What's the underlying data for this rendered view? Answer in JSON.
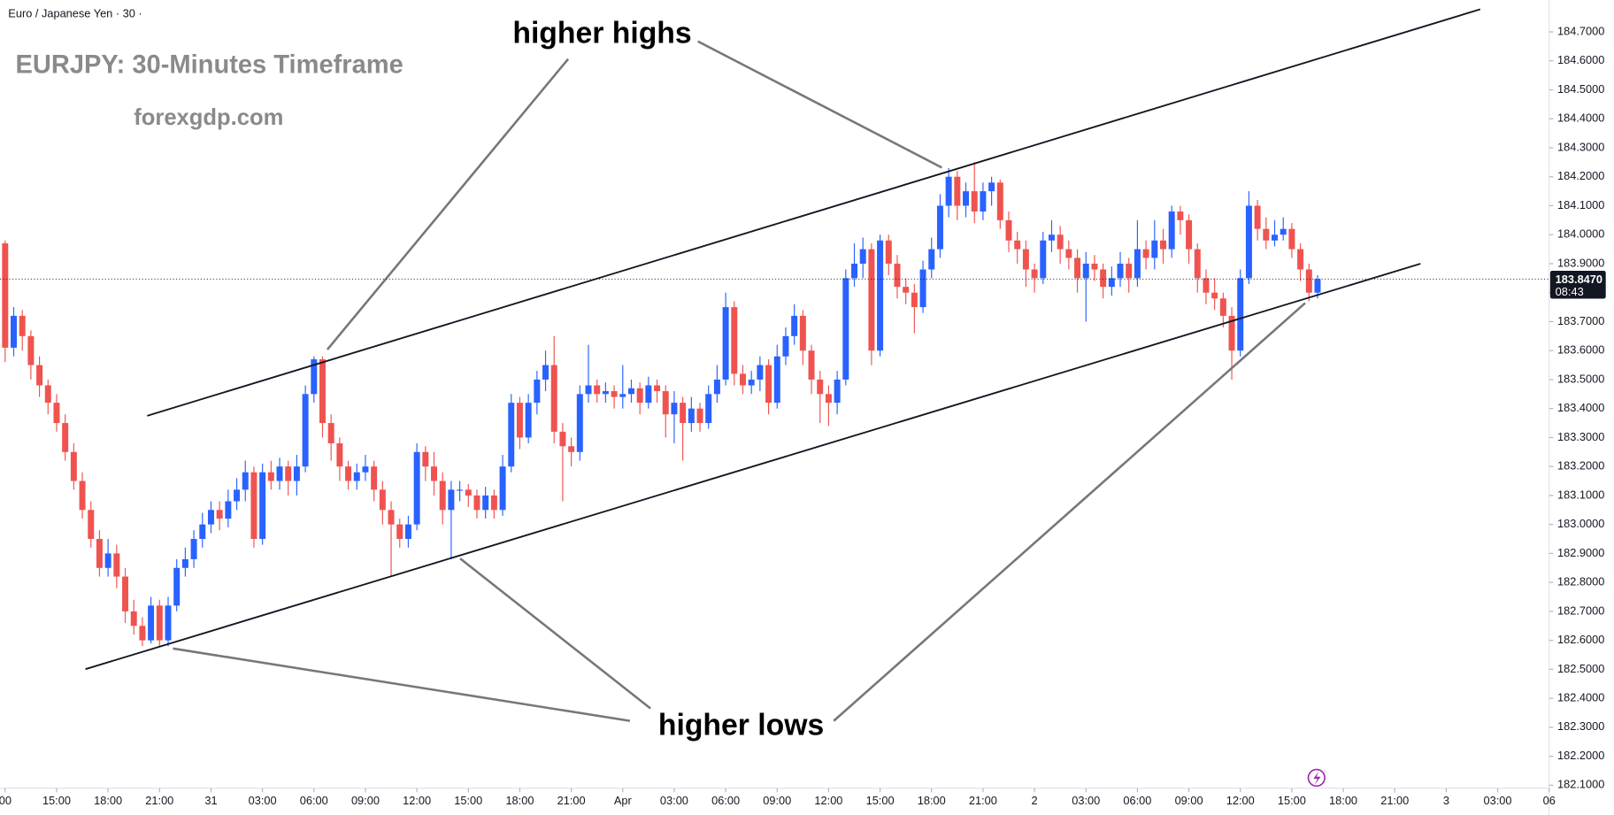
{
  "chart_data": {
    "type": "candlestick",
    "header": "Euro / Japanese Yen · 30 ·",
    "title": "EURJPY: 30-Minutes Timeframe",
    "source": "forexgdp.com",
    "annotations": [
      "higher highs",
      "higher lows"
    ],
    "up_color": "#2962ff",
    "down_color": "#ef5350",
    "grid": false,
    "ylim": [
      182.09,
      184.81
    ],
    "yticks": [
      {
        "value": 182.1,
        "label": "182.1000"
      },
      {
        "value": 182.2,
        "label": "182.2000"
      },
      {
        "value": 182.3,
        "label": "182.3000"
      },
      {
        "value": 182.4,
        "label": "182.4000"
      },
      {
        "value": 182.5,
        "label": "182.5000"
      },
      {
        "value": 182.6,
        "label": "182.6000"
      },
      {
        "value": 182.7,
        "label": "182.7000"
      },
      {
        "value": 182.8,
        "label": "182.8000"
      },
      {
        "value": 182.9,
        "label": "182.9000"
      },
      {
        "value": 183.0,
        "label": "183.0000"
      },
      {
        "value": 183.1,
        "label": "183.1000"
      },
      {
        "value": 183.2,
        "label": "183.2000"
      },
      {
        "value": 183.3,
        "label": "183.3000"
      },
      {
        "value": 183.4,
        "label": "183.4000"
      },
      {
        "value": 183.5,
        "label": "183.5000"
      },
      {
        "value": 183.6,
        "label": "183.6000"
      },
      {
        "value": 183.7,
        "label": "183.7000"
      },
      {
        "value": 183.8,
        "label": "183.8000"
      },
      {
        "value": 183.9,
        "label": "183.9000"
      },
      {
        "value": 184.0,
        "label": "184.0000"
      },
      {
        "value": 184.1,
        "label": "184.1000"
      },
      {
        "value": 184.2,
        "label": "184.2000"
      },
      {
        "value": 184.3,
        "label": "184.3000"
      },
      {
        "value": 184.4,
        "label": "184.4000"
      },
      {
        "value": 184.5,
        "label": "184.5000"
      },
      {
        "value": 184.6,
        "label": "184.6000"
      },
      {
        "value": 184.7,
        "label": "184.7000"
      }
    ],
    "xlim": [
      -0.6,
      180
    ],
    "xticks": [
      {
        "value": 0,
        "label": "00"
      },
      {
        "value": 6,
        "label": "15:00"
      },
      {
        "value": 12,
        "label": "18:00"
      },
      {
        "value": 18,
        "label": "21:00"
      },
      {
        "value": 24,
        "label": "31"
      },
      {
        "value": 30,
        "label": "03:00"
      },
      {
        "value": 36,
        "label": "06:00"
      },
      {
        "value": 42,
        "label": "09:00"
      },
      {
        "value": 48,
        "label": "12:00"
      },
      {
        "value": 54,
        "label": "15:00"
      },
      {
        "value": 60,
        "label": "18:00"
      },
      {
        "value": 66,
        "label": "21:00"
      },
      {
        "value": 72,
        "label": "Apr"
      },
      {
        "value": 78,
        "label": "03:00"
      },
      {
        "value": 84,
        "label": "06:00"
      },
      {
        "value": 90,
        "label": "09:00"
      },
      {
        "value": 96,
        "label": "12:00"
      },
      {
        "value": 102,
        "label": "15:00"
      },
      {
        "value": 108,
        "label": "18:00"
      },
      {
        "value": 114,
        "label": "21:00"
      },
      {
        "value": 120,
        "label": "2"
      },
      {
        "value": 126,
        "label": "03:00"
      },
      {
        "value": 132,
        "label": "06:00"
      },
      {
        "value": 138,
        "label": "09:00"
      },
      {
        "value": 144,
        "label": "12:00"
      },
      {
        "value": 150,
        "label": "15:00"
      },
      {
        "value": 156,
        "label": "18:00"
      },
      {
        "value": 162,
        "label": "21:00"
      },
      {
        "value": 168,
        "label": "3"
      },
      {
        "value": 174,
        "label": "03:00"
      },
      {
        "value": 180,
        "label": "06"
      }
    ],
    "last_price": {
      "value": 183.847,
      "label": "183.8470"
    },
    "countdown": "08:43",
    "open": [
      183.97,
      183.61,
      183.72,
      183.65,
      183.55,
      183.48,
      183.42,
      183.35,
      183.25,
      183.15,
      183.05,
      182.95,
      182.85,
      182.9,
      182.82,
      182.7,
      182.65,
      182.6,
      182.72,
      182.6,
      182.72,
      182.85,
      182.88,
      182.95,
      183.0,
      183.05,
      183.02,
      183.08,
      183.12,
      183.18,
      182.95,
      183.18,
      183.15,
      183.2,
      183.15,
      183.2,
      183.45,
      183.57,
      183.35,
      183.28,
      183.2,
      183.15,
      183.18,
      183.2,
      183.12,
      183.05,
      183.0,
      182.95,
      183.0,
      183.25,
      183.2,
      183.15,
      183.05,
      183.12,
      183.12,
      183.1,
      183.05,
      183.1,
      183.05,
      183.2,
      183.42,
      183.3,
      183.42,
      183.5,
      183.55,
      183.32,
      183.27,
      183.25,
      183.45,
      183.48,
      183.45,
      183.46,
      183.44,
      183.45,
      183.47,
      183.42,
      183.48,
      183.46,
      183.38,
      183.42,
      183.35,
      183.4,
      183.35,
      183.45,
      183.5,
      183.75,
      183.52,
      183.48,
      183.5,
      183.55,
      183.42,
      183.58,
      183.65,
      183.72,
      183.6,
      183.5,
      183.45,
      183.42,
      183.5,
      183.85,
      183.9,
      183.95,
      183.6,
      183.98,
      183.9,
      183.82,
      183.8,
      183.75,
      183.88,
      183.95,
      184.1,
      184.2,
      184.1,
      184.15,
      184.08,
      184.15,
      184.18,
      184.05,
      183.98,
      183.95,
      183.88,
      183.85,
      183.98,
      184.0,
      183.95,
      183.92,
      183.85,
      183.9,
      183.88,
      183.82,
      183.85,
      183.9,
      183.85,
      183.95,
      183.92,
      183.98,
      183.95,
      184.08,
      184.05,
      183.95,
      183.85,
      183.8,
      183.78,
      183.72,
      183.6,
      183.85,
      184.1,
      184.02,
      183.98,
      184.0,
      184.02,
      183.95,
      183.88,
      183.8
    ],
    "high": [
      183.98,
      183.75,
      183.74,
      183.67,
      183.58,
      183.5,
      183.45,
      183.38,
      183.28,
      183.18,
      183.08,
      182.98,
      182.95,
      182.93,
      182.85,
      182.74,
      182.68,
      182.75,
      182.74,
      182.75,
      182.88,
      182.92,
      182.98,
      183.04,
      183.08,
      183.08,
      183.12,
      183.16,
      183.22,
      183.2,
      183.21,
      183.22,
      183.23,
      183.22,
      183.24,
      183.48,
      183.58,
      183.58,
      183.38,
      183.3,
      183.22,
      183.21,
      183.24,
      183.22,
      183.15,
      183.08,
      183.02,
      183.03,
      183.28,
      183.27,
      183.25,
      183.18,
      183.15,
      183.15,
      183.14,
      183.12,
      183.13,
      183.12,
      183.24,
      183.45,
      183.44,
      183.45,
      183.53,
      183.6,
      183.65,
      183.35,
      183.3,
      183.48,
      183.62,
      183.5,
      183.49,
      183.48,
      183.55,
      183.5,
      183.49,
      183.51,
      183.5,
      183.48,
      183.46,
      183.44,
      183.44,
      183.42,
      183.48,
      183.55,
      183.8,
      183.77,
      183.55,
      183.53,
      183.58,
      183.57,
      183.62,
      183.68,
      183.76,
      183.74,
      183.62,
      183.53,
      183.48,
      183.53,
      183.88,
      183.97,
      183.99,
      183.97,
      184.0,
      184.0,
      183.93,
      183.85,
      183.83,
      183.91,
      183.99,
      184.14,
      184.23,
      184.22,
      184.18,
      184.25,
      184.18,
      184.2,
      184.19,
      184.08,
      184.01,
      183.98,
      183.9,
      184.01,
      184.05,
      184.03,
      183.98,
      183.95,
      183.94,
      183.93,
      183.9,
      183.89,
      183.94,
      183.92,
      184.05,
      183.98,
      184.05,
      184.02,
      184.1,
      184.1,
      184.07,
      183.97,
      183.88,
      183.85,
      183.8,
      183.75,
      183.88,
      184.15,
      184.12,
      184.06,
      184.05,
      184.06,
      184.04,
      183.97,
      183.9,
      183.86
    ],
    "low": [
      183.56,
      183.58,
      183.6,
      183.5,
      183.44,
      183.38,
      183.32,
      183.22,
      183.12,
      183.02,
      182.92,
      182.82,
      182.82,
      182.78,
      182.66,
      182.62,
      182.58,
      182.59,
      182.58,
      182.58,
      182.7,
      182.82,
      182.85,
      182.92,
      182.97,
      182.98,
      182.99,
      183.05,
      183.08,
      182.92,
      182.93,
      183.12,
      183.12,
      183.1,
      183.1,
      183.18,
      183.42,
      183.3,
      183.22,
      183.15,
      183.12,
      183.12,
      183.15,
      183.08,
      183.0,
      182.82,
      182.92,
      182.92,
      182.98,
      183.15,
      183.1,
      183.0,
      182.88,
      183.08,
      183.06,
      183.02,
      183.02,
      183.02,
      183.03,
      183.18,
      183.26,
      183.28,
      183.38,
      183.46,
      183.28,
      183.08,
      183.2,
      183.22,
      183.42,
      183.42,
      183.42,
      183.4,
      183.4,
      183.42,
      183.38,
      183.4,
      183.42,
      183.3,
      183.28,
      183.22,
      183.32,
      183.32,
      183.33,
      183.42,
      183.48,
      183.48,
      183.45,
      183.45,
      183.46,
      183.38,
      183.4,
      183.55,
      183.62,
      183.55,
      183.45,
      183.35,
      183.34,
      183.38,
      183.48,
      183.82,
      183.85,
      183.55,
      183.58,
      183.86,
      183.78,
      183.76,
      183.66,
      183.73,
      183.85,
      183.92,
      184.06,
      184.05,
      184.06,
      184.04,
      184.05,
      184.1,
      184.02,
      183.94,
      183.9,
      183.82,
      183.8,
      183.83,
      183.94,
      183.9,
      183.88,
      183.8,
      183.7,
      183.84,
      183.78,
      183.79,
      183.82,
      183.8,
      183.82,
      183.88,
      183.88,
      183.9,
      183.92,
      184.0,
      183.9,
      183.8,
      183.76,
      183.74,
      183.68,
      183.5,
      183.58,
      183.83,
      183.98,
      183.95,
      183.96,
      183.98,
      183.92,
      183.84,
      183.77,
      183.78
    ],
    "close": [
      183.61,
      183.72,
      183.65,
      183.55,
      183.48,
      183.42,
      183.35,
      183.25,
      183.15,
      183.05,
      182.95,
      182.85,
      182.9,
      182.82,
      182.7,
      182.65,
      182.6,
      182.72,
      182.6,
      182.72,
      182.85,
      182.88,
      182.95,
      183.0,
      183.05,
      183.02,
      183.08,
      183.12,
      183.18,
      182.95,
      183.18,
      183.15,
      183.2,
      183.15,
      183.2,
      183.45,
      183.57,
      183.35,
      183.28,
      183.2,
      183.15,
      183.18,
      183.2,
      183.12,
      183.05,
      183.0,
      182.95,
      183.0,
      183.25,
      183.2,
      183.15,
      183.05,
      183.12,
      183.12,
      183.1,
      183.05,
      183.1,
      183.05,
      183.2,
      183.42,
      183.3,
      183.42,
      183.5,
      183.55,
      183.32,
      183.27,
      183.25,
      183.45,
      183.48,
      183.45,
      183.46,
      183.44,
      183.45,
      183.47,
      183.42,
      183.48,
      183.46,
      183.38,
      183.42,
      183.35,
      183.4,
      183.35,
      183.45,
      183.5,
      183.75,
      183.52,
      183.48,
      183.5,
      183.55,
      183.42,
      183.58,
      183.65,
      183.72,
      183.6,
      183.5,
      183.45,
      183.42,
      183.5,
      183.85,
      183.9,
      183.95,
      183.6,
      183.98,
      183.9,
      183.82,
      183.8,
      183.75,
      183.88,
      183.95,
      184.1,
      184.2,
      184.1,
      184.15,
      184.08,
      184.15,
      184.18,
      184.05,
      183.98,
      183.95,
      183.88,
      183.85,
      183.98,
      184.0,
      183.95,
      183.92,
      183.85,
      183.9,
      183.88,
      183.82,
      183.85,
      183.9,
      183.85,
      183.95,
      183.92,
      183.98,
      183.95,
      184.08,
      184.05,
      183.95,
      183.85,
      183.8,
      183.78,
      183.72,
      183.6,
      183.85,
      184.1,
      184.02,
      183.98,
      184.0,
      184.02,
      183.95,
      183.88,
      183.8,
      183.847
    ]
  }
}
